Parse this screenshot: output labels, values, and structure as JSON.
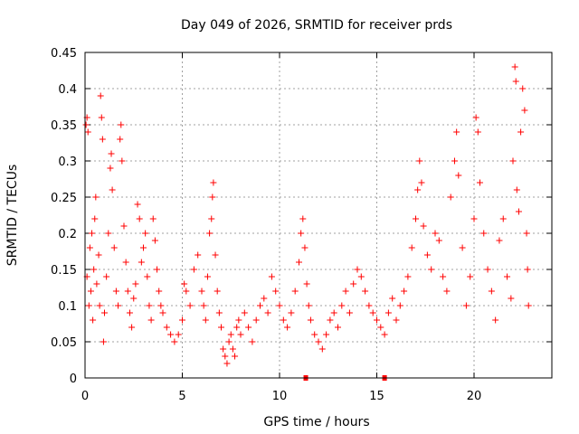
{
  "chart_data": {
    "type": "scatter",
    "title": "Day 049 of 2026, SRMTID for receiver prds",
    "xlabel": "GPS time / hours",
    "ylabel": "SRMTID / TECUs",
    "xlim": [
      0,
      24
    ],
    "ylim": [
      0,
      0.45
    ],
    "xticks": [
      0,
      5,
      10,
      15,
      20
    ],
    "xtick_labels": [
      "0",
      "5",
      "10",
      "15",
      "20"
    ],
    "yticks": [
      0,
      0.05,
      0.1,
      0.15,
      0.2,
      0.25,
      0.3,
      0.35,
      0.4,
      0.45
    ],
    "ytick_labels": [
      "0",
      "0.05",
      "0.1",
      "0.15",
      "0.2",
      "0.25",
      "0.3",
      "0.35",
      "0.4",
      "0.45"
    ],
    "grid": true,
    "marker": "+",
    "color": "#ff0000",
    "series": [
      {
        "name": "SRMTID",
        "points": [
          [
            0.05,
            0.35
          ],
          [
            0.1,
            0.36
          ],
          [
            0.15,
            0.34
          ],
          [
            0.1,
            0.14
          ],
          [
            0.2,
            0.1
          ],
          [
            0.3,
            0.12
          ],
          [
            0.25,
            0.18
          ],
          [
            0.35,
            0.2
          ],
          [
            0.4,
            0.08
          ],
          [
            0.45,
            0.15
          ],
          [
            0.5,
            0.22
          ],
          [
            0.55,
            0.25
          ],
          [
            0.6,
            0.13
          ],
          [
            0.7,
            0.17
          ],
          [
            0.75,
            0.1
          ],
          [
            0.8,
            0.39
          ],
          [
            0.85,
            0.36
          ],
          [
            0.9,
            0.33
          ],
          [
            0.95,
            0.05
          ],
          [
            1.0,
            0.09
          ],
          [
            1.1,
            0.14
          ],
          [
            1.2,
            0.2
          ],
          [
            1.3,
            0.29
          ],
          [
            1.35,
            0.31
          ],
          [
            1.4,
            0.26
          ],
          [
            1.5,
            0.18
          ],
          [
            1.6,
            0.12
          ],
          [
            1.7,
            0.1
          ],
          [
            1.8,
            0.33
          ],
          [
            1.85,
            0.35
          ],
          [
            1.9,
            0.3
          ],
          [
            2.0,
            0.21
          ],
          [
            2.1,
            0.16
          ],
          [
            2.2,
            0.12
          ],
          [
            2.3,
            0.09
          ],
          [
            2.4,
            0.07
          ],
          [
            2.5,
            0.11
          ],
          [
            2.6,
            0.13
          ],
          [
            2.7,
            0.24
          ],
          [
            2.8,
            0.22
          ],
          [
            2.9,
            0.16
          ],
          [
            3.0,
            0.18
          ],
          [
            3.1,
            0.2
          ],
          [
            3.2,
            0.14
          ],
          [
            3.3,
            0.1
          ],
          [
            3.4,
            0.08
          ],
          [
            3.5,
            0.22
          ],
          [
            3.6,
            0.19
          ],
          [
            3.7,
            0.15
          ],
          [
            3.8,
            0.12
          ],
          [
            3.9,
            0.1
          ],
          [
            4.0,
            0.09
          ],
          [
            4.2,
            0.07
          ],
          [
            4.4,
            0.06
          ],
          [
            4.6,
            0.05
          ],
          [
            4.8,
            0.06
          ],
          [
            5.0,
            0.08
          ],
          [
            5.1,
            0.13
          ],
          [
            5.2,
            0.12
          ],
          [
            5.4,
            0.1
          ],
          [
            5.6,
            0.15
          ],
          [
            5.8,
            0.17
          ],
          [
            6.0,
            0.12
          ],
          [
            6.1,
            0.1
          ],
          [
            6.2,
            0.08
          ],
          [
            6.3,
            0.14
          ],
          [
            6.4,
            0.2
          ],
          [
            6.5,
            0.22
          ],
          [
            6.55,
            0.25
          ],
          [
            6.6,
            0.27
          ],
          [
            6.7,
            0.17
          ],
          [
            6.8,
            0.12
          ],
          [
            6.9,
            0.09
          ],
          [
            7.0,
            0.07
          ],
          [
            7.1,
            0.04
          ],
          [
            7.2,
            0.03
          ],
          [
            7.3,
            0.02
          ],
          [
            7.4,
            0.05
          ],
          [
            7.5,
            0.06
          ],
          [
            7.6,
            0.04
          ],
          [
            7.7,
            0.03
          ],
          [
            7.8,
            0.07
          ],
          [
            7.9,
            0.08
          ],
          [
            8.0,
            0.06
          ],
          [
            8.2,
            0.09
          ],
          [
            8.4,
            0.07
          ],
          [
            8.6,
            0.05
          ],
          [
            8.8,
            0.08
          ],
          [
            9.0,
            0.1
          ],
          [
            9.2,
            0.11
          ],
          [
            9.4,
            0.09
          ],
          [
            9.6,
            0.14
          ],
          [
            9.8,
            0.12
          ],
          [
            10.0,
            0.1
          ],
          [
            10.2,
            0.08
          ],
          [
            10.4,
            0.07
          ],
          [
            10.6,
            0.09
          ],
          [
            10.8,
            0.12
          ],
          [
            11.0,
            0.16
          ],
          [
            11.1,
            0.2
          ],
          [
            11.2,
            0.22
          ],
          [
            11.3,
            0.18
          ],
          [
            11.4,
            0.13
          ],
          [
            11.5,
            0.1
          ],
          [
            11.6,
            0.08
          ],
          [
            11.8,
            0.06
          ],
          [
            12.0,
            0.05
          ],
          [
            12.2,
            0.04
          ],
          [
            12.4,
            0.06
          ],
          [
            12.6,
            0.08
          ],
          [
            12.8,
            0.09
          ],
          [
            13.0,
            0.07
          ],
          [
            13.2,
            0.1
          ],
          [
            13.4,
            0.12
          ],
          [
            13.6,
            0.09
          ],
          [
            13.8,
            0.13
          ],
          [
            14.0,
            0.15
          ],
          [
            14.2,
            0.14
          ],
          [
            14.4,
            0.12
          ],
          [
            14.6,
            0.1
          ],
          [
            14.8,
            0.09
          ],
          [
            15.0,
            0.08
          ],
          [
            15.2,
            0.07
          ],
          [
            15.4,
            0.06
          ],
          [
            15.6,
            0.09
          ],
          [
            15.8,
            0.11
          ],
          [
            16.0,
            0.08
          ],
          [
            16.2,
            0.1
          ],
          [
            16.4,
            0.12
          ],
          [
            16.6,
            0.14
          ],
          [
            16.8,
            0.18
          ],
          [
            17.0,
            0.22
          ],
          [
            17.1,
            0.26
          ],
          [
            17.2,
            0.3
          ],
          [
            17.3,
            0.27
          ],
          [
            17.4,
            0.21
          ],
          [
            17.6,
            0.17
          ],
          [
            17.8,
            0.15
          ],
          [
            18.0,
            0.2
          ],
          [
            18.2,
            0.19
          ],
          [
            18.4,
            0.14
          ],
          [
            18.6,
            0.12
          ],
          [
            18.8,
            0.25
          ],
          [
            19.0,
            0.3
          ],
          [
            19.1,
            0.34
          ],
          [
            19.2,
            0.28
          ],
          [
            19.4,
            0.18
          ],
          [
            19.6,
            0.1
          ],
          [
            19.8,
            0.14
          ],
          [
            20.0,
            0.22
          ],
          [
            20.1,
            0.36
          ],
          [
            20.2,
            0.34
          ],
          [
            20.3,
            0.27
          ],
          [
            20.5,
            0.2
          ],
          [
            20.7,
            0.15
          ],
          [
            20.9,
            0.12
          ],
          [
            21.1,
            0.08
          ],
          [
            21.3,
            0.19
          ],
          [
            21.5,
            0.22
          ],
          [
            21.7,
            0.14
          ],
          [
            21.9,
            0.11
          ],
          [
            22.0,
            0.3
          ],
          [
            22.1,
            0.43
          ],
          [
            22.15,
            0.41
          ],
          [
            22.2,
            0.26
          ],
          [
            22.3,
            0.23
          ],
          [
            22.4,
            0.34
          ],
          [
            22.5,
            0.4
          ],
          [
            22.6,
            0.37
          ],
          [
            22.7,
            0.2
          ],
          [
            22.75,
            0.15
          ],
          [
            22.8,
            0.1
          ]
        ]
      }
    ],
    "markers_on_axis": [
      11.35,
      15.4
    ]
  }
}
